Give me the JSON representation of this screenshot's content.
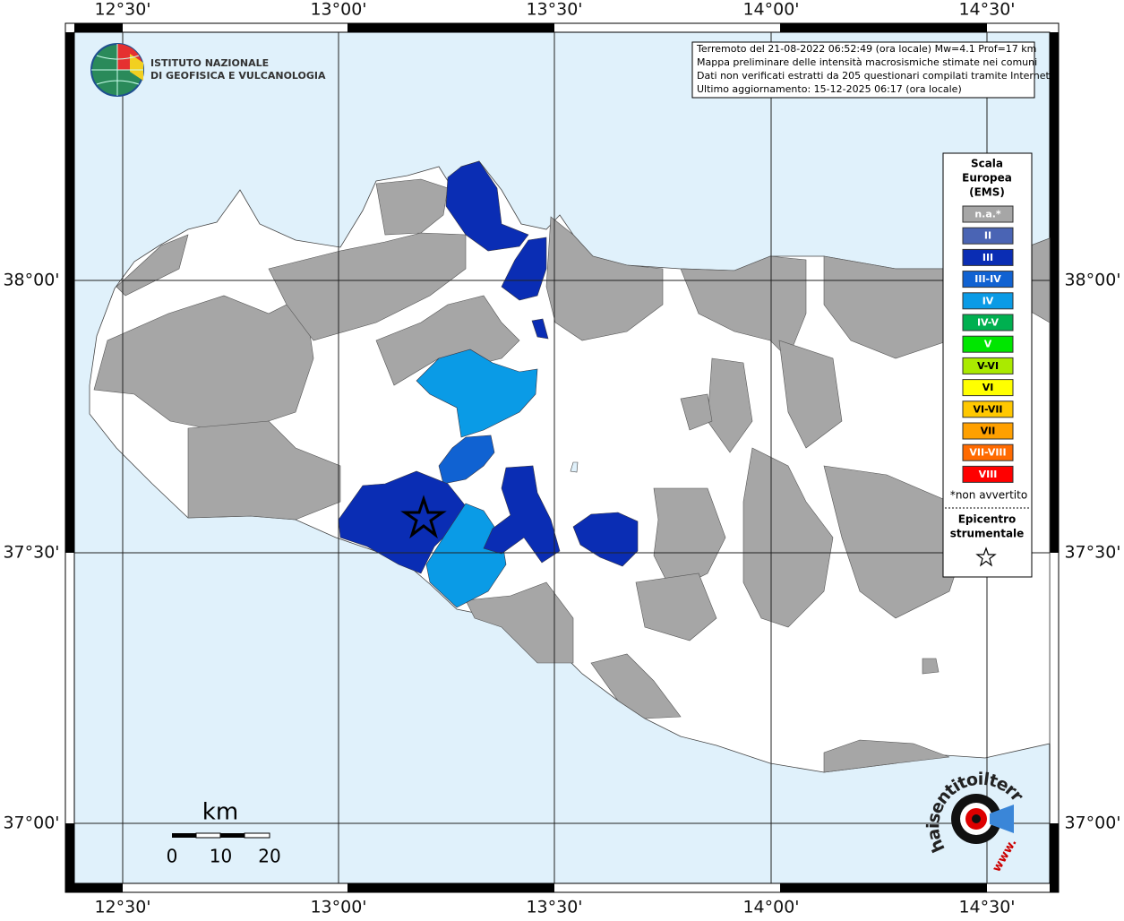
{
  "map": {
    "top_labels": [
      "12°30'",
      "13°00'",
      "13°30'",
      "14°00'",
      "14°30'"
    ],
    "bottom_labels": [
      "12°30'",
      "13°00'",
      "13°30'",
      "14°00'",
      "14°30'"
    ],
    "left_labels": [
      "38°00'",
      "37°30'",
      "37°00'"
    ],
    "right_labels": [
      "38°00'",
      "37°30'",
      "37°00'"
    ]
  },
  "logo": {
    "lines": [
      "ISTITUTO NAZIONALE",
      "DI GEOFISICA E VULCANOLOGIA"
    ]
  },
  "info": {
    "lines": [
      "Terremoto del 21-08-2022 06:52:49 (ora locale) Mw=4.1 Prof=17 km",
      "Mappa preliminare delle intensità macrosismiche stimate nei comuni",
      "Dati non verificati estratti da 205 questionari compilati tramite Internet.",
      "Ultimo aggiornamento: 15-12-2025 06:17 (ora locale)"
    ]
  },
  "legend": {
    "title": [
      "Scala",
      "Europea",
      "(EMS)"
    ],
    "items": [
      {
        "label": "n.a.*",
        "color": "#a6a6a6"
      },
      {
        "label": "II",
        "color": "#4a64b4"
      },
      {
        "label": "III",
        "color": "#0a2db4"
      },
      {
        "label": "III-IV",
        "color": "#1062d2"
      },
      {
        "label": "IV",
        "color": "#0a9be6"
      },
      {
        "label": "IV-V",
        "color": "#00b050"
      },
      {
        "label": "V",
        "color": "#00e600"
      },
      {
        "label": "V-VI",
        "color": "#aaea00"
      },
      {
        "label": "VI",
        "color": "#ffff00"
      },
      {
        "label": "VI-VII",
        "color": "#ffc800"
      },
      {
        "label": "VII",
        "color": "#ffa000"
      },
      {
        "label": "VII-VIII",
        "color": "#ff6a00"
      },
      {
        "label": "VIII",
        "color": "#ff0000"
      }
    ],
    "note": "*non avvertito",
    "epicenter": [
      "Epicentro",
      "strumentale"
    ]
  },
  "scale_bar": {
    "unit": "km",
    "ticks": [
      0,
      10,
      20
    ]
  },
  "watermark": {
    "text": "haisentitoilterremoto.it",
    "www": "www."
  }
}
